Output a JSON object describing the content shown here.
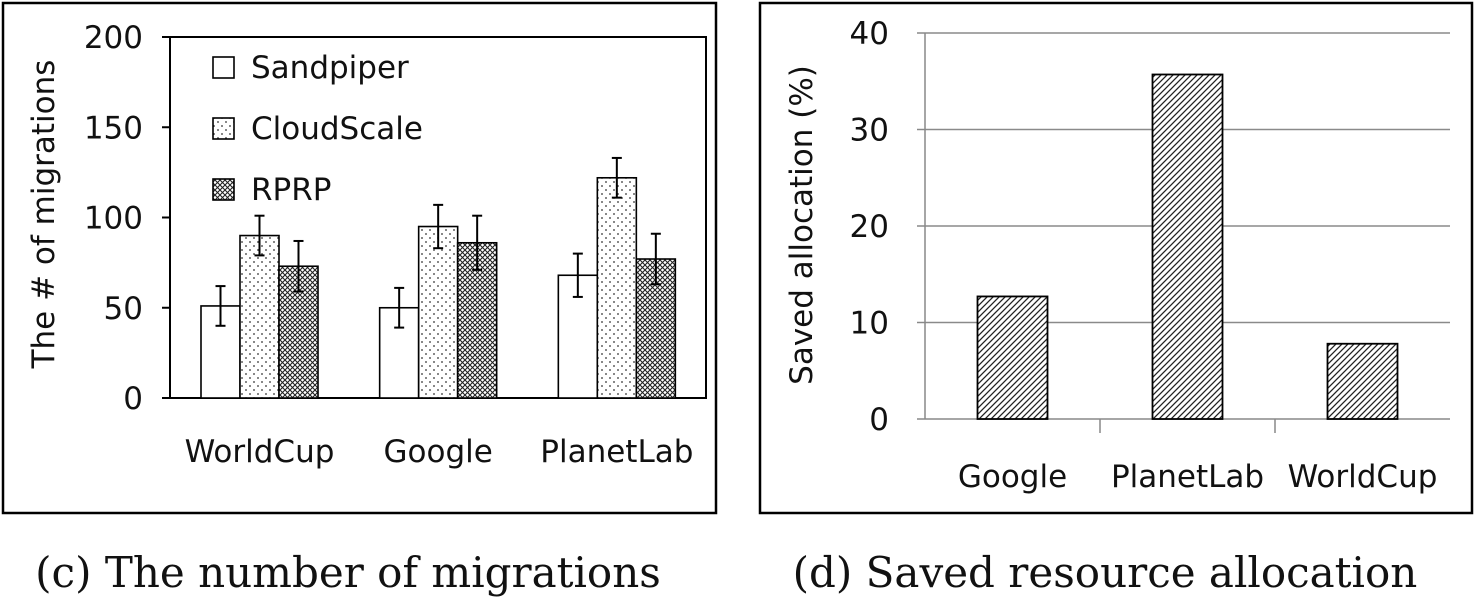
{
  "chart_data": [
    {
      "type": "bar",
      "caption": "(c) The number of migrations",
      "ylabel": "The # of migrations",
      "xlabel": "",
      "ylim": [
        0,
        200
      ],
      "yticks": [
        0,
        50,
        100,
        150,
        200
      ],
      "grid": false,
      "legend_position": "top-left",
      "error_bars": true,
      "categories": [
        "WorldCup",
        "Google",
        "PlanetLab"
      ],
      "series": [
        {
          "name": "Sandpiper",
          "values": [
            51,
            50,
            68
          ],
          "errors": [
            11,
            11,
            12
          ],
          "pattern": "none"
        },
        {
          "name": "CloudScale",
          "values": [
            90,
            95,
            122
          ],
          "errors": [
            11,
            12,
            11
          ],
          "pattern": "dots"
        },
        {
          "name": "RPRP",
          "values": [
            73,
            86,
            77
          ],
          "errors": [
            14,
            15,
            14
          ],
          "pattern": "dense-crosshatch"
        }
      ]
    },
    {
      "type": "bar",
      "caption": "(d) Saved resource allocation",
      "ylabel": "Saved allocation (%)",
      "xlabel": "",
      "ylim": [
        0,
        40
      ],
      "yticks": [
        0,
        10,
        20,
        30,
        40
      ],
      "grid": true,
      "categories": [
        "Google",
        "PlanetLab",
        "WorldCup"
      ],
      "values": [
        12.7,
        35.7,
        7.8
      ],
      "pattern": "diagonal-hatch"
    }
  ]
}
